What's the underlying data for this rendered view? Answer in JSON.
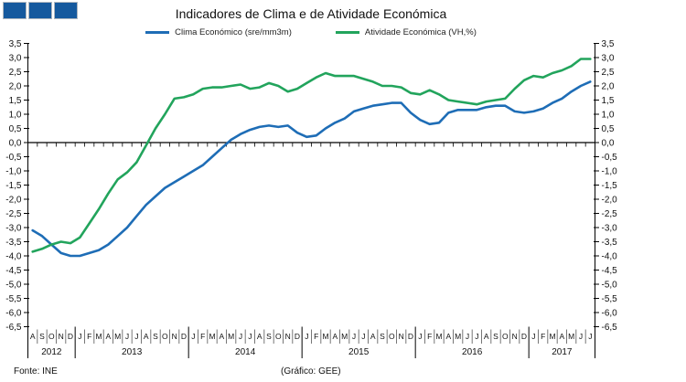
{
  "title": "Indicadores de Clima e de Atividade Económica",
  "logo": {
    "square_count": 3,
    "fill": "#15599e",
    "border": "#aeb6bf"
  },
  "legend": [
    {
      "label": "Clima Económico (sre/mm3m)",
      "color": "#1e6db6"
    },
    {
      "label": "Atividade Económica (VH,%)",
      "color": "#22a45c"
    }
  ],
  "footer": {
    "source": "Fonte: INE",
    "credit": "(Gráfico: GEE)"
  },
  "chart_data": {
    "type": "line",
    "title": "Indicadores de Clima e de Atividade Económica",
    "xlabel": "",
    "ylabel": "",
    "ylim": [
      -6.5,
      3.5
    ],
    "ytick_step": 0.5,
    "decimal_separator": ",",
    "y_axis_sides": "both",
    "grid": false,
    "zero_line": true,
    "legend_position": "top",
    "categories": [
      "A",
      "S",
      "O",
      "N",
      "D",
      "J",
      "F",
      "M",
      "A",
      "M",
      "J",
      "J",
      "A",
      "S",
      "O",
      "N",
      "D",
      "J",
      "F",
      "M",
      "A",
      "M",
      "J",
      "J",
      "A",
      "S",
      "O",
      "N",
      "D",
      "J",
      "F",
      "M",
      "A",
      "M",
      "J",
      "J",
      "A",
      "S",
      "O",
      "N",
      "D",
      "J",
      "F",
      "M",
      "A",
      "M",
      "J",
      "J",
      "A",
      "S",
      "O",
      "N",
      "D",
      "J",
      "F",
      "M",
      "A",
      "M",
      "J",
      "J"
    ],
    "year_groups": [
      {
        "label": "2012",
        "months": 5
      },
      {
        "label": "2013",
        "months": 12
      },
      {
        "label": "2014",
        "months": 12
      },
      {
        "label": "2015",
        "months": 12
      },
      {
        "label": "2016",
        "months": 12
      },
      {
        "label": "2017",
        "months": 7
      }
    ],
    "series": [
      {
        "name": "Clima Económico (sre/mm3m)",
        "color": "#1e6db6",
        "values": [
          -3.1,
          -3.3,
          -3.6,
          -3.9,
          -4.0,
          -4.0,
          -3.9,
          -3.8,
          -3.6,
          -3.3,
          -3.0,
          -2.6,
          -2.2,
          -1.9,
          -1.6,
          -1.4,
          -1.2,
          -1.0,
          -0.8,
          -0.5,
          -0.2,
          0.1,
          0.3,
          0.45,
          0.55,
          0.6,
          0.55,
          0.6,
          0.35,
          0.2,
          0.25,
          0.5,
          0.7,
          0.85,
          1.1,
          1.2,
          1.3,
          1.35,
          1.4,
          1.4,
          1.05,
          0.8,
          0.65,
          0.7,
          1.05,
          1.15,
          1.15,
          1.15,
          1.25,
          1.3,
          1.3,
          1.1,
          1.05,
          1.1,
          1.2,
          1.4,
          1.55,
          1.8,
          2.0,
          2.15
        ]
      },
      {
        "name": "Atividade Económica (VH,%)",
        "color": "#22a45c",
        "values": [
          -3.85,
          -3.75,
          -3.6,
          -3.5,
          -3.55,
          -3.35,
          -2.85,
          -2.35,
          -1.8,
          -1.3,
          -1.05,
          -0.7,
          -0.1,
          0.5,
          1.0,
          1.55,
          1.6,
          1.7,
          1.9,
          1.95,
          1.95,
          2.0,
          2.05,
          1.9,
          1.95,
          2.1,
          2.0,
          1.8,
          1.9,
          2.1,
          2.3,
          2.45,
          2.35,
          2.35,
          2.35,
          2.25,
          2.15,
          2.0,
          2.0,
          1.95,
          1.75,
          1.7,
          1.85,
          1.7,
          1.5,
          1.45,
          1.4,
          1.35,
          1.45,
          1.5,
          1.55,
          1.9,
          2.2,
          2.35,
          2.3,
          2.45,
          2.55,
          2.7,
          2.95,
          2.95
        ]
      }
    ]
  }
}
